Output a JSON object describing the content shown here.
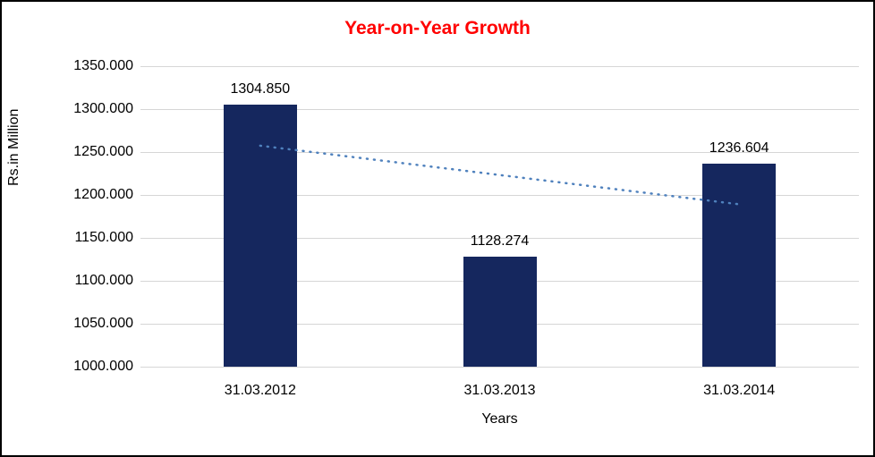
{
  "chart_data": {
    "type": "bar",
    "title": "Year-on-Year Growth",
    "xlabel": "Years",
    "ylabel": "Rs.in Million",
    "categories": [
      "31.03.2012",
      "31.03.2013",
      "31.03.2014"
    ],
    "values": [
      1304.85,
      1128.274,
      1236.604
    ],
    "value_labels": [
      "1304.850",
      "1128.274",
      "1236.604"
    ],
    "ylim": [
      1000,
      1350
    ],
    "ytick_step": 50,
    "ytick_labels": [
      "1000.000",
      "1050.000",
      "1100.000",
      "1150.000",
      "1200.000",
      "1250.000",
      "1300.000",
      "1350.000"
    ],
    "grid": true,
    "legend": false,
    "title_color": "#ff0000",
    "bar_color": "#15275e",
    "gridline_color": "#d6d6d6",
    "trendline": {
      "style": "dotted",
      "color": "#4f81bd",
      "endpoints": [
        1257.366,
        1189.12
      ]
    }
  }
}
